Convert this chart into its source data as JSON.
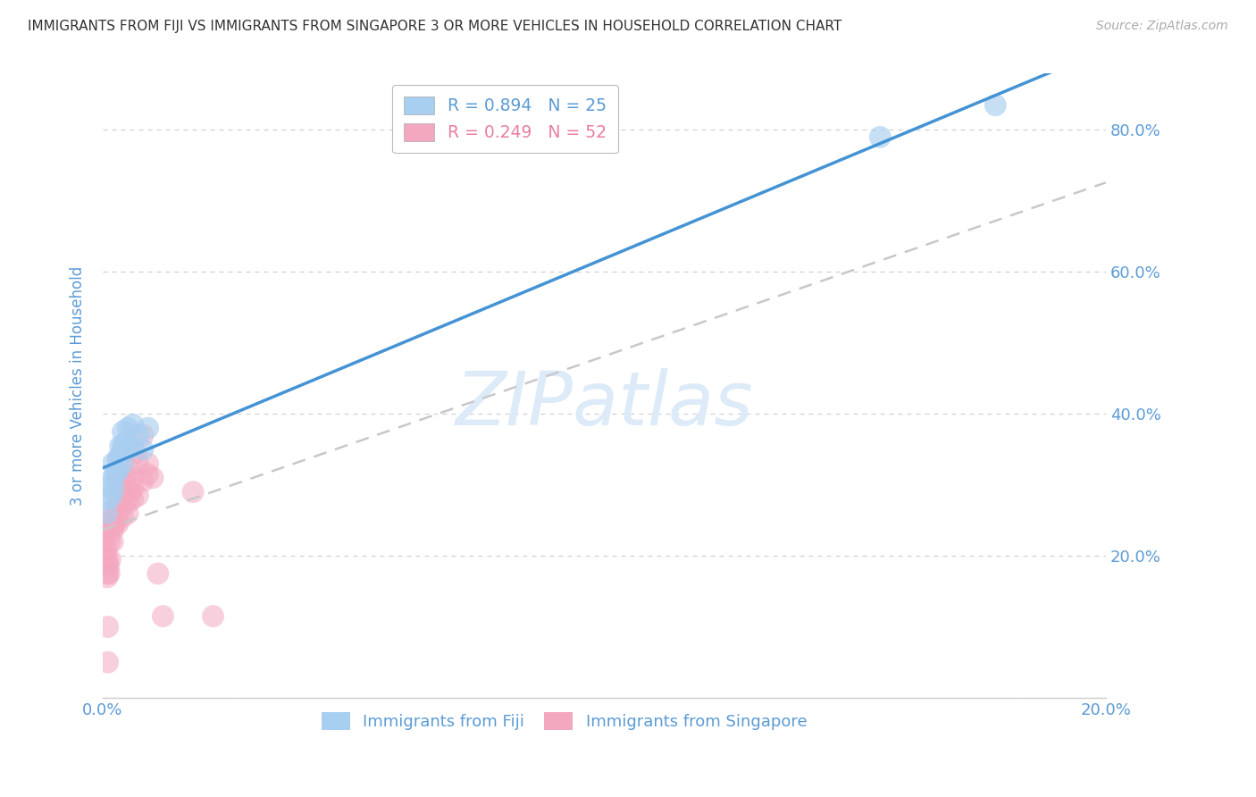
{
  "title": "IMMIGRANTS FROM FIJI VS IMMIGRANTS FROM SINGAPORE 3 OR MORE VEHICLES IN HOUSEHOLD CORRELATION CHART",
  "source": "Source: ZipAtlas.com",
  "ylabel": "3 or more Vehicles in Household",
  "x_ticks": [
    0.0,
    0.05,
    0.1,
    0.15,
    0.2
  ],
  "x_tick_labels": [
    "0.0%",
    "",
    "",
    "",
    "20.0%"
  ],
  "y_ticks": [
    0.0,
    0.2,
    0.4,
    0.6,
    0.8
  ],
  "y_tick_labels_right": [
    "",
    "20.0%",
    "40.0%",
    "60.0%",
    "80.0%"
  ],
  "xlim": [
    0.0,
    0.2
  ],
  "ylim": [
    0.0,
    0.88
  ],
  "fiji_color": "#a8cef0",
  "singapore_color": "#f4a8c0",
  "fiji_line_color": "#4493d4",
  "singapore_line_color": "#c8c8c8",
  "title_color": "#333333",
  "axis_label_color": "#5b9bd5",
  "grid_color": "#d0d0d0",
  "watermark_text": "ZIPatlas",
  "watermark_color": "#ddeaf8",
  "legend_fiji_label": "R = 0.894   N = 25",
  "legend_singapore_label": "R = 0.249   N = 52",
  "fiji_x": [
    0.0008,
    0.0012,
    0.0015,
    0.0018,
    0.002,
    0.002,
    0.0022,
    0.0025,
    0.003,
    0.003,
    0.0032,
    0.0035,
    0.004,
    0.004,
    0.004,
    0.0045,
    0.005,
    0.005,
    0.006,
    0.006,
    0.007,
    0.008,
    0.009,
    0.155,
    0.178
  ],
  "fiji_y": [
    0.26,
    0.28,
    0.3,
    0.285,
    0.31,
    0.33,
    0.295,
    0.315,
    0.32,
    0.335,
    0.34,
    0.355,
    0.33,
    0.355,
    0.375,
    0.36,
    0.35,
    0.38,
    0.355,
    0.385,
    0.37,
    0.35,
    0.38,
    0.79,
    0.835
  ],
  "singapore_x": [
    0.0003,
    0.0004,
    0.0005,
    0.0006,
    0.0007,
    0.0008,
    0.0009,
    0.001,
    0.001,
    0.001,
    0.001,
    0.0012,
    0.0013,
    0.0014,
    0.0015,
    0.002,
    0.002,
    0.002,
    0.002,
    0.002,
    0.002,
    0.0025,
    0.003,
    0.003,
    0.003,
    0.003,
    0.003,
    0.0035,
    0.004,
    0.004,
    0.004,
    0.004,
    0.0045,
    0.005,
    0.005,
    0.005,
    0.0055,
    0.006,
    0.006,
    0.006,
    0.0065,
    0.007,
    0.007,
    0.008,
    0.008,
    0.009,
    0.009,
    0.01,
    0.011,
    0.012,
    0.018,
    0.022
  ],
  "singapore_y": [
    0.24,
    0.22,
    0.235,
    0.2,
    0.21,
    0.19,
    0.17,
    0.05,
    0.1,
    0.175,
    0.195,
    0.185,
    0.175,
    0.22,
    0.195,
    0.24,
    0.25,
    0.255,
    0.265,
    0.235,
    0.22,
    0.245,
    0.245,
    0.255,
    0.27,
    0.285,
    0.31,
    0.295,
    0.255,
    0.27,
    0.285,
    0.305,
    0.31,
    0.26,
    0.275,
    0.325,
    0.29,
    0.28,
    0.295,
    0.31,
    0.345,
    0.285,
    0.33,
    0.305,
    0.37,
    0.315,
    0.33,
    0.31,
    0.175,
    0.115,
    0.29,
    0.115
  ]
}
